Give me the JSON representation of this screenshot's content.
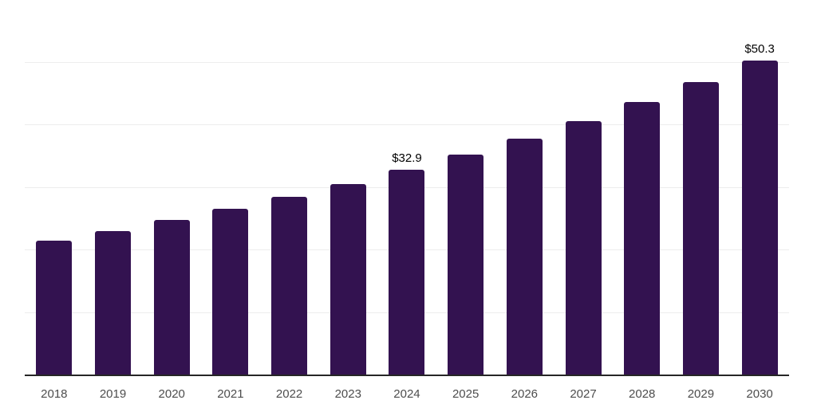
{
  "chart": {
    "background": "#ffffff",
    "bar_color": "#331250",
    "grid_color": "#ededed",
    "axis_color": "#262626",
    "tick_color": "#4d4d4d",
    "data_label_color": "#000000"
  },
  "chart_data": {
    "type": "bar",
    "title": "",
    "xlabel": "",
    "ylabel": "",
    "categories": [
      "2018",
      "2019",
      "2020",
      "2021",
      "2022",
      "2023",
      "2024",
      "2025",
      "2026",
      "2027",
      "2028",
      "2029",
      "2030"
    ],
    "values": [
      21.5,
      23.1,
      24.8,
      26.6,
      28.6,
      30.6,
      32.9,
      35.3,
      37.9,
      40.7,
      43.7,
      46.9,
      50.3
    ],
    "data_labels": [
      null,
      null,
      null,
      null,
      null,
      null,
      "$32.9",
      null,
      null,
      null,
      null,
      null,
      "$50.3"
    ],
    "ylim": [
      0,
      60
    ],
    "grid_step": 10,
    "grid": true,
    "legend": false,
    "legend_position": null
  }
}
